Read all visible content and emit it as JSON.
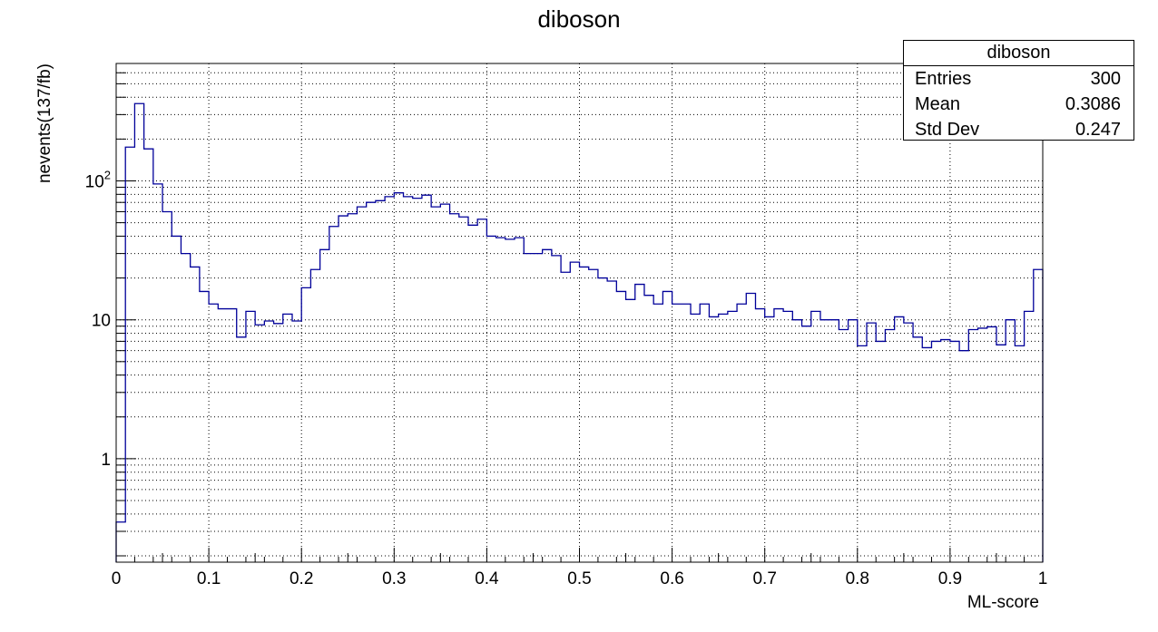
{
  "chart_data": {
    "type": "step",
    "title": "diboson",
    "xlabel": "ML-score",
    "ylabel": "nevents(137/fb)",
    "xlim": [
      0,
      1
    ],
    "ylim": [
      0.18,
      700
    ],
    "yscale": "log",
    "grid": true,
    "bins": 100,
    "x_ticks": [
      "0",
      "0.1",
      "0.2",
      "0.3",
      "0.4",
      "0.5",
      "0.6",
      "0.7",
      "0.8",
      "0.9",
      "1"
    ],
    "y_ticks": [
      {
        "value": 1,
        "label": "1"
      },
      {
        "value": 10,
        "label": "10"
      },
      {
        "value": 100,
        "label": "10",
        "sup": "2"
      }
    ],
    "line_color": "#000099",
    "values": [
      0.35,
      175,
      360,
      170,
      95,
      60,
      40,
      30,
      24,
      16,
      13,
      12,
      12,
      7.5,
      11.5,
      9.2,
      9.8,
      9.4,
      11,
      9.8,
      17,
      23,
      32,
      47,
      56,
      58,
      65,
      70,
      72,
      77,
      82,
      77,
      75,
      79,
      65,
      68,
      58,
      55,
      48,
      53,
      40,
      39,
      38,
      39,
      30,
      30,
      32,
      29,
      22,
      26,
      24,
      23,
      20,
      19,
      16,
      14,
      18,
      15,
      13,
      16,
      13,
      13,
      11,
      13,
      10.5,
      11,
      11.5,
      13,
      15.5,
      12,
      10.5,
      12,
      11.5,
      10,
      9,
      11.5,
      10,
      10,
      8.5,
      10,
      6.5,
      9.5,
      7,
      8.5,
      10.5,
      9.5,
      7.5,
      6.3,
      7,
      7.2,
      7,
      6,
      8.5,
      8.7,
      8.9,
      6.6,
      10,
      6.5,
      11.5,
      23
    ]
  },
  "stats": {
    "title": "diboson",
    "rows": [
      {
        "label": "Entries",
        "value": "300"
      },
      {
        "label": "Mean",
        "value": "0.3086"
      },
      {
        "label": "Std Dev",
        "value": "0.247"
      }
    ]
  }
}
